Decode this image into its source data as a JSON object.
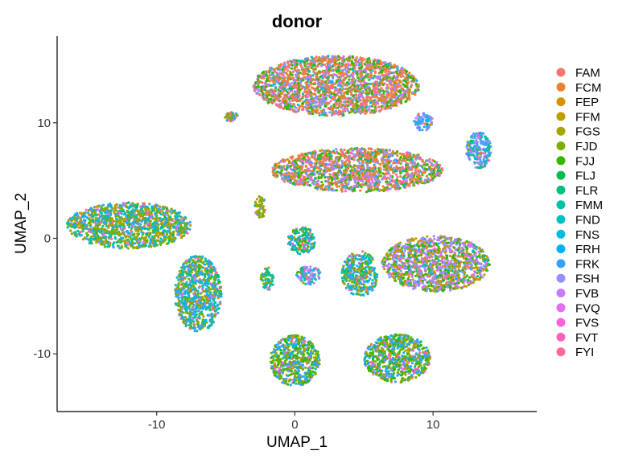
{
  "chart_data": {
    "type": "scatter",
    "title": "donor",
    "xlabel": "UMAP_1",
    "ylabel": "UMAP_2",
    "xlim": [
      -17.2,
      17.5
    ],
    "ylim": [
      -15,
      17.5
    ],
    "xticks": [
      -10,
      0,
      10
    ],
    "yticks": [
      -10,
      0,
      10
    ],
    "xtick_labels": [
      "-10",
      "0",
      "10"
    ],
    "ytick_labels": [
      "-10",
      "0",
      "10"
    ],
    "grid": false,
    "legend_position": "right",
    "series": [
      {
        "name": "FAM",
        "color": "#F8766D"
      },
      {
        "name": "FCM",
        "color": "#EA8331"
      },
      {
        "name": "FEP",
        "color": "#D89000"
      },
      {
        "name": "FFM",
        "color": "#C09B00"
      },
      {
        "name": "FGS",
        "color": "#A3A500"
      },
      {
        "name": "FJD",
        "color": "#7CAE00"
      },
      {
        "name": "FJJ",
        "color": "#39B600"
      },
      {
        "name": "FLJ",
        "color": "#00BB4E"
      },
      {
        "name": "FLR",
        "color": "#00BF7D"
      },
      {
        "name": "FMM",
        "color": "#00C1A3"
      },
      {
        "name": "FND",
        "color": "#00BFC4"
      },
      {
        "name": "FNS",
        "color": "#00BAE0"
      },
      {
        "name": "FRH",
        "color": "#00B0F6"
      },
      {
        "name": "FRK",
        "color": "#35A2FF"
      },
      {
        "name": "FSH",
        "color": "#9590FF"
      },
      {
        "name": "FVB",
        "color": "#C77CFF"
      },
      {
        "name": "FVQ",
        "color": "#E76BF3"
      },
      {
        "name": "FVS",
        "color": "#FA62DB"
      },
      {
        "name": "FVT",
        "color": "#FF62BC"
      },
      {
        "name": "FYI",
        "color": "#FF6A98"
      }
    ],
    "clusters": [
      {
        "cx": 3.0,
        "cy": 13.2,
        "rx": 6.0,
        "ry": 2.6,
        "dominant": [
          "FAM",
          "FCM",
          "FJJ",
          "FSH"
        ]
      },
      {
        "cx": 4.5,
        "cy": 5.9,
        "rx": 6.2,
        "ry": 1.9,
        "dominant": [
          "FAM",
          "FCM",
          "FJJ",
          "FSH"
        ]
      },
      {
        "cx": -12.0,
        "cy": 1.1,
        "rx": 4.5,
        "ry": 2.0,
        "dominant": [
          "FGS",
          "FJD",
          "FRK",
          "FMM"
        ]
      },
      {
        "cx": 10.2,
        "cy": -2.2,
        "rx": 3.9,
        "ry": 2.4,
        "dominant": [
          "FJJ",
          "FFM",
          "FSH",
          "FVB"
        ]
      },
      {
        "cx": -7.0,
        "cy": -4.8,
        "rx": 1.7,
        "ry": 3.3,
        "dominant": [
          "FMM",
          "FJD",
          "FRK"
        ]
      },
      {
        "cx": 0.0,
        "cy": -10.6,
        "rx": 1.8,
        "ry": 2.2,
        "dominant": [
          "FRK",
          "FJD",
          "FJJ"
        ]
      },
      {
        "cx": 7.4,
        "cy": -10.4,
        "rx": 2.4,
        "ry": 2.1,
        "dominant": [
          "FRK",
          "FJD",
          "FJJ"
        ]
      },
      {
        "cx": 0.5,
        "cy": -0.2,
        "rx": 1.0,
        "ry": 1.2,
        "dominant": [
          "FMM",
          "FJJ",
          "FRK"
        ]
      },
      {
        "cx": 13.3,
        "cy": 7.6,
        "rx": 0.9,
        "ry": 1.6,
        "dominant": [
          "FRK",
          "FMM",
          "FSH"
        ]
      },
      {
        "cx": 4.7,
        "cy": -3.1,
        "rx": 1.3,
        "ry": 2.0,
        "dominant": [
          "FRK",
          "FMM",
          "FJD"
        ]
      },
      {
        "cx": 1.0,
        "cy": -3.2,
        "rx": 0.9,
        "ry": 0.8,
        "dominant": [
          "FRK",
          "FMM",
          "FVB"
        ]
      },
      {
        "cx": -2.5,
        "cy": 2.7,
        "rx": 0.4,
        "ry": 1.0,
        "dominant": [
          "FJD",
          "FGS"
        ]
      },
      {
        "cx": -4.6,
        "cy": 10.5,
        "rx": 0.5,
        "ry": 0.4,
        "dominant": [
          "FRK",
          "FJD"
        ]
      },
      {
        "cx": 9.3,
        "cy": 10.1,
        "rx": 0.7,
        "ry": 0.8,
        "dominant": [
          "FRK",
          "FSH"
        ]
      },
      {
        "cx": -2.0,
        "cy": -3.5,
        "rx": 0.5,
        "ry": 1.0,
        "dominant": [
          "FMM",
          "FJD"
        ]
      }
    ]
  }
}
